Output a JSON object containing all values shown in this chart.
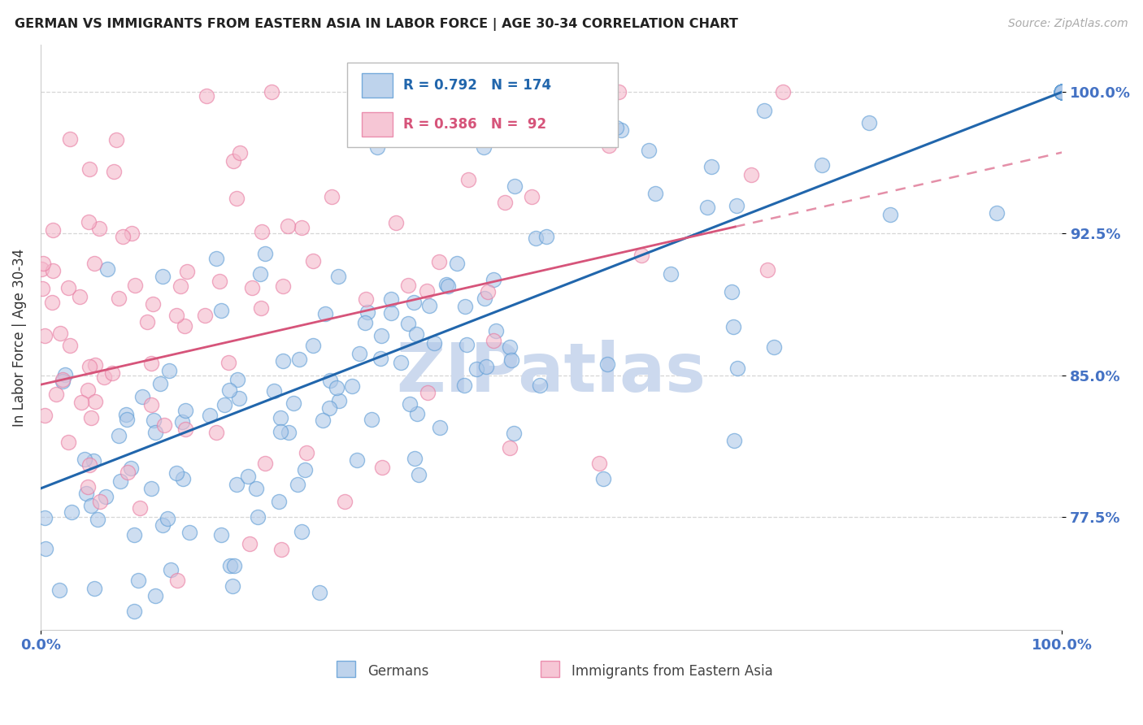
{
  "title": "GERMAN VS IMMIGRANTS FROM EASTERN ASIA IN LABOR FORCE | AGE 30-34 CORRELATION CHART",
  "source": "Source: ZipAtlas.com",
  "ylabel": "In Labor Force | Age 30-34",
  "xlim": [
    0.0,
    1.0
  ],
  "ylim": [
    0.715,
    1.025
  ],
  "yticks": [
    0.775,
    0.85,
    0.925,
    1.0
  ],
  "ytick_labels": [
    "77.5%",
    "85.0%",
    "92.5%",
    "100.0%"
  ],
  "xticks": [
    0.0,
    1.0
  ],
  "xtick_labels": [
    "0.0%",
    "100.0%"
  ],
  "legend_blue_r": "0.792",
  "legend_blue_n": "174",
  "legend_pink_r": "0.386",
  "legend_pink_n": " 92",
  "blue_fill_color": "#aec8e8",
  "pink_fill_color": "#f4b8cb",
  "blue_edge_color": "#5b9bd5",
  "pink_edge_color": "#e879a0",
  "blue_line_color": "#2166ac",
  "pink_line_color": "#d6547a",
  "title_color": "#222222",
  "tick_color": "#4472c4",
  "watermark_color": "#ccd9ee",
  "background_color": "#ffffff",
  "grid_color": "#cccccc",
  "spine_color": "#cccccc"
}
